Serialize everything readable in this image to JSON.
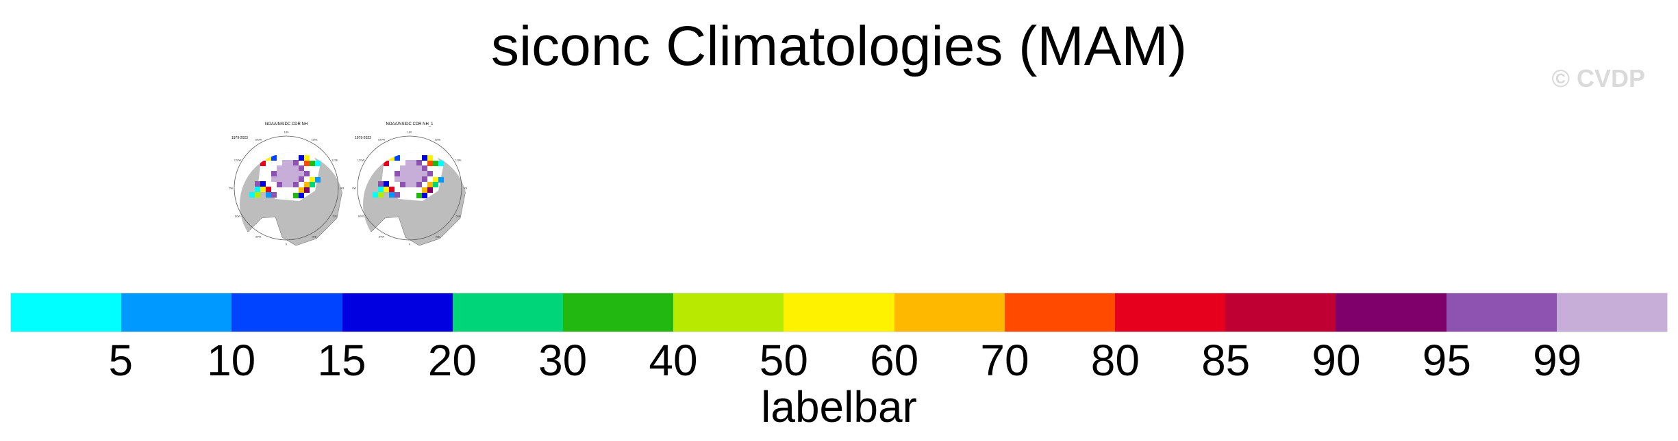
{
  "title": "siconc Climatologies (MAM)",
  "copyright": "© CVDP",
  "panels": [
    {
      "name": "NOAA/NSIDC CDR NH",
      "years": "1979-2023"
    },
    {
      "name": "NOAA/NSIDC CDR NH_1",
      "years": "1979-2023"
    }
  ],
  "map_lon_labels": [
    "180",
    "150E",
    "120E",
    "90E",
    "60E",
    "30E",
    "0",
    "30W",
    "60W",
    "90W",
    "120W",
    "150W"
  ],
  "colorbar": {
    "label": "labelbar",
    "ticks": [
      "5",
      "10",
      "15",
      "20",
      "30",
      "40",
      "50",
      "60",
      "70",
      "80",
      "85",
      "90",
      "95",
      "99"
    ],
    "colors": [
      "#00ffff",
      "#0099ff",
      "#0044ff",
      "#0000e0",
      "#00d57a",
      "#22b711",
      "#b7ea00",
      "#fff200",
      "#ffb800",
      "#ff4a00",
      "#e6001d",
      "#bf0033",
      "#80006b",
      "#8e52b0",
      "#c6aed8"
    ]
  }
}
